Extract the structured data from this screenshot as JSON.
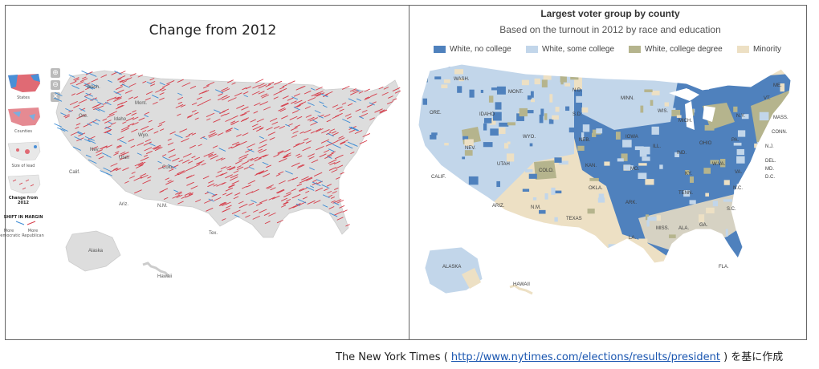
{
  "left_panel": {
    "title": "Change from 2012",
    "controls": [
      "⊕",
      "⊖",
      "✕"
    ],
    "thumbnails": [
      {
        "label": "States",
        "active": false
      },
      {
        "label": "Counties",
        "active": false
      },
      {
        "label": "Size of lead",
        "active": false
      },
      {
        "label": "Change from 2012",
        "active": true
      }
    ],
    "shift_legend": {
      "title": "SHIFT IN MARGIN",
      "left": "More Democratic",
      "right": "More Republican"
    },
    "place_labels": [
      "Wash.",
      "Ore.",
      "Calif.",
      "Nev.",
      "Idaho",
      "Mont.",
      "Wyo.",
      "Utah",
      "Colo.",
      "Ariz.",
      "N.M.",
      "Tex.",
      "Alaska",
      "Hawaii"
    ],
    "colors": {
      "gop": "#d63d4a",
      "dem": "#3b8bd4",
      "land": "#dcdcdc"
    }
  },
  "right_panel": {
    "title": "Largest voter group by county",
    "subtitle": "Based on the turnout in 2012 by race and education",
    "legend": [
      {
        "label": "White, no college",
        "color": "#4f81bd"
      },
      {
        "label": "White, some college",
        "color": "#c2d6ea"
      },
      {
        "label": "White, college degree",
        "color": "#b5b48d"
      },
      {
        "label": "Minority",
        "color": "#ede0c4"
      }
    ],
    "state_labels": [
      "WASH.",
      "ORE.",
      "CALIF.",
      "NEV.",
      "IDAHO",
      "MONT.",
      "WYO.",
      "UTAH",
      "COLO.",
      "ARIZ.",
      "N.M.",
      "TEXAS",
      "N.D.",
      "S.D.",
      "NEB.",
      "KAN.",
      "OKLA.",
      "MINN.",
      "IOWA",
      "MO.",
      "ARK.",
      "LA.",
      "WIS.",
      "ILL.",
      "MICH.",
      "IND.",
      "OHIO",
      "KY.",
      "TENN.",
      "MISS.",
      "ALA.",
      "GA.",
      "FLA.",
      "S.C.",
      "N.C.",
      "VA.",
      "W.VA.",
      "PA.",
      "N.Y.",
      "VT.",
      "ME.",
      "MASS.",
      "CONN.",
      "N.J.",
      "DEL.",
      "MD.",
      "D.C.",
      "ALASKA",
      "HAWAII"
    ]
  },
  "credit": {
    "prefix": "The New York Times ( ",
    "link": "http://www.nytimes.com/elections/results/president",
    "suffix": " ) を基に作成"
  }
}
